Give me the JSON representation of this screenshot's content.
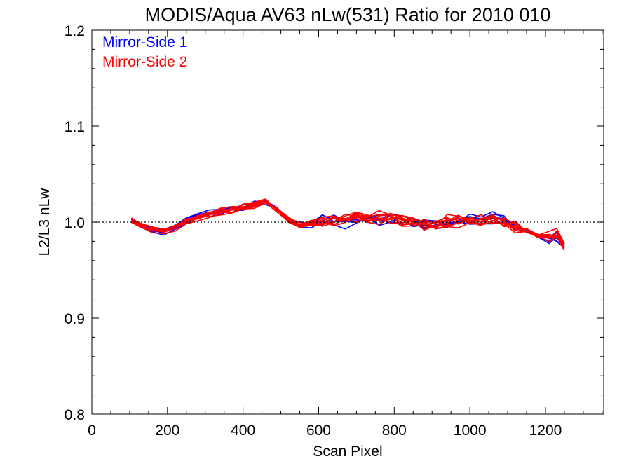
{
  "chart_data": {
    "type": "line",
    "title": "MODIS/Aqua AV63 nLw(531) Ratio for 2010 010",
    "xlabel": "Scan Pixel",
    "ylabel": "L2/L3 nLw",
    "xlim": [
      0,
      1354
    ],
    "ylim": [
      0.8,
      1.2
    ],
    "xticks": [
      0,
      200,
      400,
      600,
      800,
      1000,
      1200
    ],
    "xtick_labels": [
      "0",
      "200",
      "400",
      "600",
      "800",
      "1000",
      "1200"
    ],
    "yticks": [
      0.8,
      0.9,
      1.0,
      1.1,
      1.2
    ],
    "ytick_labels": [
      "0.8",
      "0.9",
      "1.0",
      "1.1",
      "1.2"
    ],
    "reference_line": {
      "y": 1.0,
      "style": "dotted"
    },
    "grid": false,
    "legend_position": "top-left",
    "colors": {
      "Mirror-Side 1": "#0000ff",
      "Mirror-Side 2": "#ff0000"
    },
    "x": [
      105,
      130,
      160,
      190,
      220,
      250,
      280,
      310,
      340,
      370,
      400,
      430,
      460,
      490,
      520,
      550,
      580,
      610,
      640,
      670,
      700,
      730,
      760,
      790,
      820,
      850,
      880,
      910,
      940,
      970,
      1000,
      1030,
      1060,
      1090,
      1120,
      1150,
      1180,
      1210,
      1230,
      1250
    ],
    "series": [
      {
        "name": "Mirror-Side 1",
        "line_count": 5,
        "values": [
          1.003,
          0.995,
          0.992,
          0.99,
          0.996,
          1.002,
          1.006,
          1.01,
          1.011,
          1.014,
          1.016,
          1.019,
          1.022,
          1.014,
          1.004,
          0.998,
          0.998,
          1.002,
          1.003,
          1.002,
          1.003,
          1.005,
          1.003,
          1.005,
          1.001,
          0.999,
          0.998,
          0.997,
          1.0,
          1.002,
          1.003,
          1.004,
          1.004,
          1.001,
          0.997,
          0.991,
          0.986,
          0.983,
          0.985,
          0.972
        ]
      },
      {
        "name": "Mirror-Side 2",
        "line_count": 10,
        "values": [
          1.002,
          0.996,
          0.993,
          0.991,
          0.995,
          1.001,
          1.005,
          1.009,
          1.011,
          1.013,
          1.016,
          1.018,
          1.021,
          1.013,
          1.003,
          0.997,
          0.999,
          1.001,
          1.002,
          1.003,
          1.004,
          1.004,
          1.004,
          1.004,
          1.002,
          1.0,
          0.998,
          0.998,
          1.001,
          1.001,
          1.003,
          1.003,
          1.003,
          1.001,
          0.996,
          0.992,
          0.987,
          0.984,
          0.988,
          0.976
        ]
      }
    ]
  }
}
